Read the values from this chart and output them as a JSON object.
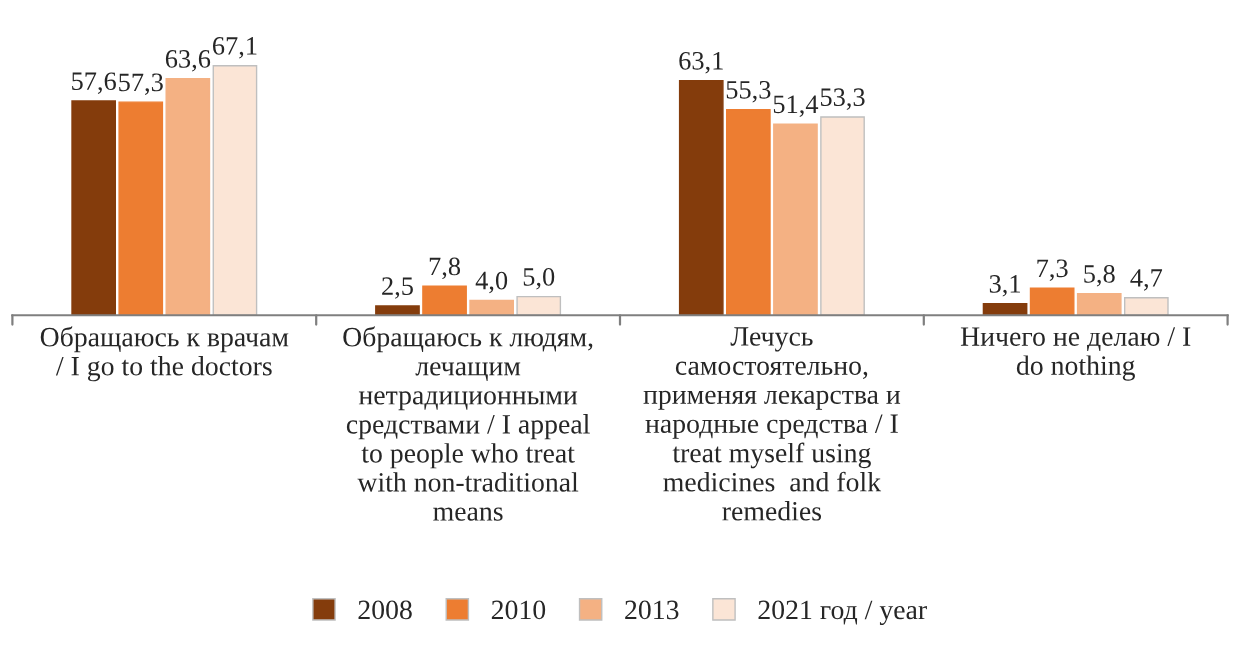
{
  "chart_data": {
    "type": "bar",
    "categories": [
      "Обращаюсь к врачам\n/ I go to the doctors",
      "Обращаюсь к людям,\nлечащим\nнетрадиционными\nсредствами / I appeal\nto people who treat\nwith non-traditional\nmeans",
      "Лечусь\nсамостоятельно,\nприменяя лекарства и\nнародные средства / I\ntreat myself using\nmedicines  and folk\nremedies",
      "Ничего не делаю / I\ndo nothing"
    ],
    "series": [
      {
        "name": "2008",
        "color": "#843c0c",
        "values": [
          57.6,
          2.5,
          63.1,
          3.1
        ],
        "value_labels": [
          "57,6",
          "2,5",
          "63,1",
          "3,1"
        ]
      },
      {
        "name": "2010",
        "color": "#ed7d31",
        "values": [
          57.3,
          7.8,
          55.3,
          7.3
        ],
        "value_labels": [
          "57,3",
          "7,8",
          "55,3",
          "7,3"
        ]
      },
      {
        "name": "2013",
        "color": "#f4b183",
        "values": [
          63.6,
          4.0,
          51.4,
          5.8
        ],
        "value_labels": [
          "63,6",
          "4,0",
          "51,4",
          "5,8"
        ]
      },
      {
        "name": "2021 год / year",
        "color": "#fbe5d6",
        "values": [
          67.1,
          5.0,
          53.3,
          4.7
        ],
        "value_labels": [
          "67,1",
          "5,0",
          "53,3",
          "4,7"
        ]
      }
    ],
    "legend": "bottom"
  }
}
